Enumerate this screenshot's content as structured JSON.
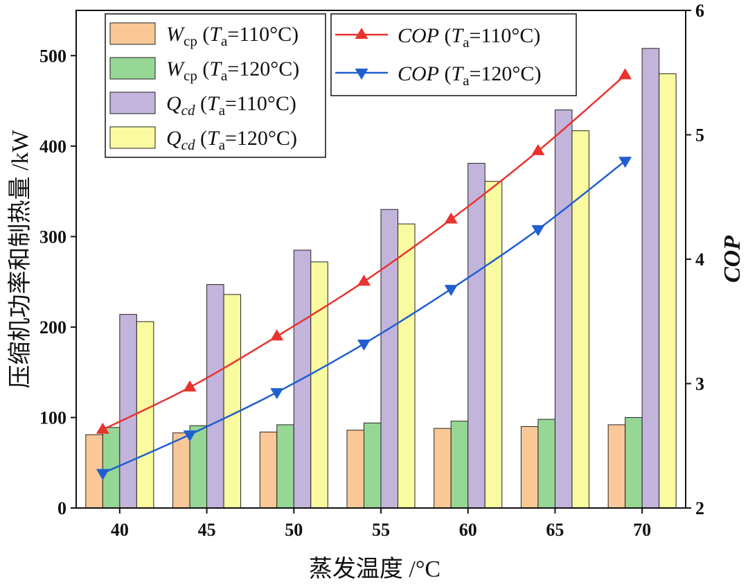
{
  "chart_data": {
    "type": "bar",
    "xlabel": "蒸发温度 /°C",
    "ylabel_left": "压缩机功率和制热量 /kW",
    "ylabel_right": "COP",
    "categories": [
      "40",
      "45",
      "50",
      "55",
      "60",
      "65",
      "70"
    ],
    "ylim_left": [
      0,
      550
    ],
    "ylim_right": [
      2,
      6
    ],
    "yticks_left": [
      "0",
      "100",
      "200",
      "300",
      "400",
      "500"
    ],
    "yticks_right": [
      "2",
      "3",
      "4",
      "5",
      "6"
    ],
    "bar_series": [
      {
        "name": "Wcp (Ta=110°C)",
        "legend": {
          "sym": "W",
          "sub": "cp",
          "cond": "110°C"
        },
        "color": "#FAC896",
        "values": [
          81,
          83,
          84,
          86,
          88,
          90,
          92
        ]
      },
      {
        "name": "Wcp (Ta=120°C)",
        "legend": {
          "sym": "W",
          "sub": "cp",
          "cond": "120°C"
        },
        "color": "#96D796",
        "values": [
          89,
          91,
          92,
          94,
          96,
          98,
          100
        ]
      },
      {
        "name": "Qcd (Ta=110°C)",
        "legend": {
          "sym": "Q",
          "sub": "cd",
          "cond": "110°C"
        },
        "color": "#C3B4DC",
        "values": [
          214,
          247,
          285,
          330,
          381,
          440,
          508
        ]
      },
      {
        "name": "Qcd (Ta=120°C)",
        "legend": {
          "sym": "Q",
          "sub": "cd",
          "cond": "120°C"
        },
        "color": "#FAFAA0",
        "values": [
          206,
          236,
          272,
          314,
          361,
          417,
          480
        ]
      }
    ],
    "line_series": [
      {
        "name": "COP (Ta=110°C)",
        "legend": {
          "sym": "COP",
          "cond": "110°C"
        },
        "color": "#E8332E",
        "marker": "triangle-up",
        "axis": "right",
        "values": [
          2.63,
          2.97,
          3.38,
          3.82,
          4.32,
          4.87,
          5.48
        ]
      },
      {
        "name": "COP (Ta=120°C)",
        "legend": {
          "sym": "COP",
          "cond": "120°C"
        },
        "color": "#1F5FD0",
        "marker": "triangle-down",
        "axis": "right",
        "values": [
          2.28,
          2.59,
          2.93,
          3.32,
          3.76,
          4.24,
          4.79
        ]
      }
    ],
    "legend_placement": "top-left and top-center",
    "grid": false
  }
}
